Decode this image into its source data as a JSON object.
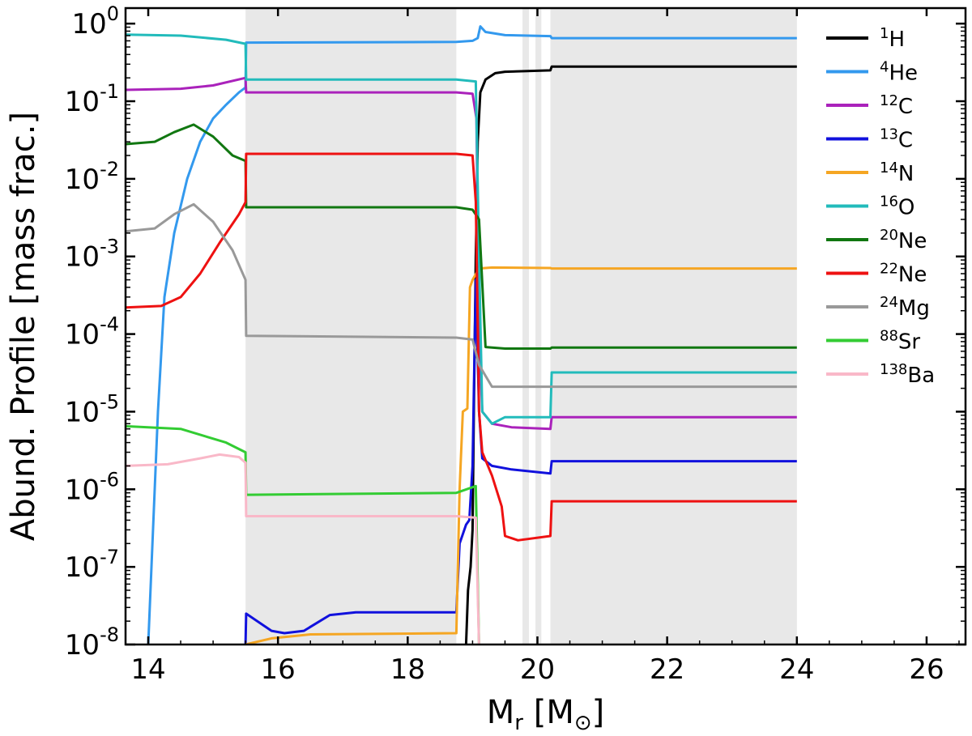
{
  "chart_data": {
    "type": "line",
    "ylabel": "Abund. Profile [mass frac.]",
    "xlabel": {
      "base": "M",
      "sub": "r",
      "unit_base": "M",
      "unit_symbol": "⊙"
    },
    "x_range": [
      13.65,
      26.6
    ],
    "y_range_log10": [
      -8,
      0.2
    ],
    "y_scale": "log",
    "x_ticks": [
      14,
      16,
      18,
      20,
      22,
      24,
      26
    ],
    "y_ticks": [
      {
        "exp": 0,
        "label_base": "10",
        "label_exp": "0"
      },
      {
        "exp": -1,
        "label_base": "10",
        "label_exp": "-1"
      },
      {
        "exp": -2,
        "label_base": "10",
        "label_exp": "-2"
      },
      {
        "exp": -3,
        "label_base": "10",
        "label_exp": "-3"
      },
      {
        "exp": -4,
        "label_base": "10",
        "label_exp": "-4"
      },
      {
        "exp": -5,
        "label_base": "10",
        "label_exp": "-5"
      },
      {
        "exp": -6,
        "label_base": "10",
        "label_exp": "-6"
      },
      {
        "exp": -7,
        "label_base": "10",
        "label_exp": "-7"
      },
      {
        "exp": -8,
        "label_base": "10",
        "label_exp": "-8"
      }
    ],
    "shaded_regions": [
      [
        15.5,
        18.75
      ],
      [
        19.77,
        19.87
      ],
      [
        19.97,
        20.06
      ],
      [
        20.2,
        24.0
      ]
    ],
    "legend_position": "right",
    "series": [
      {
        "name": "H",
        "mass": "1",
        "color": "#000000",
        "points": [
          [
            18.88,
            1e-09
          ],
          [
            18.9,
            1e-08
          ],
          [
            18.93,
            5e-08
          ],
          [
            18.97,
            1e-07
          ],
          [
            19.0,
            3e-07
          ],
          [
            19.02,
            1e-05
          ],
          [
            19.05,
            0.001
          ],
          [
            19.08,
            0.03
          ],
          [
            19.12,
            0.13
          ],
          [
            19.2,
            0.19
          ],
          [
            19.35,
            0.23
          ],
          [
            19.5,
            0.24
          ],
          [
            20.2,
            0.25
          ],
          [
            20.22,
            0.28
          ],
          [
            24.0,
            0.28
          ]
        ]
      },
      {
        "name": "He",
        "mass": "4",
        "color": "#3399ee",
        "points": [
          [
            13.95,
            1e-09
          ],
          [
            14.05,
            1e-07
          ],
          [
            14.15,
            1e-05
          ],
          [
            14.25,
            0.0003
          ],
          [
            14.4,
            0.002
          ],
          [
            14.6,
            0.01
          ],
          [
            14.8,
            0.03
          ],
          [
            15.0,
            0.06
          ],
          [
            15.2,
            0.09
          ],
          [
            15.4,
            0.13
          ],
          [
            15.5,
            0.15
          ],
          [
            15.51,
            0.57
          ],
          [
            18.75,
            0.58
          ],
          [
            19.0,
            0.6
          ],
          [
            19.08,
            0.65
          ],
          [
            19.12,
            0.92
          ],
          [
            19.2,
            0.78
          ],
          [
            19.5,
            0.71
          ],
          [
            20.2,
            0.69
          ],
          [
            20.22,
            0.65
          ],
          [
            24.0,
            0.65
          ]
        ]
      },
      {
        "name": "C",
        "mass": "12",
        "color": "#aa22bb",
        "points": [
          [
            13.65,
            0.14
          ],
          [
            14.5,
            0.145
          ],
          [
            15.0,
            0.16
          ],
          [
            15.5,
            0.2
          ],
          [
            15.51,
            0.13
          ],
          [
            18.75,
            0.13
          ],
          [
            19.0,
            0.125
          ],
          [
            19.06,
            0.06
          ],
          [
            19.1,
            0.0001
          ],
          [
            19.15,
            1e-05
          ],
          [
            19.3,
            7e-06
          ],
          [
            19.6,
            6.3e-06
          ],
          [
            20.2,
            6e-06
          ],
          [
            20.22,
            8.5e-06
          ],
          [
            24.0,
            8.5e-06
          ]
        ]
      },
      {
        "name": "C",
        "mass": "13",
        "color": "#1111dd",
        "points": [
          [
            15.49,
            1e-09
          ],
          [
            15.5,
            1e-08
          ],
          [
            15.51,
            2.5e-08
          ],
          [
            15.9,
            1.5e-08
          ],
          [
            16.1,
            1.4e-08
          ],
          [
            16.4,
            1.5e-08
          ],
          [
            16.8,
            2.4e-08
          ],
          [
            17.2,
            2.6e-08
          ],
          [
            18.5,
            2.6e-08
          ],
          [
            18.75,
            2.6e-08
          ],
          [
            18.8,
            2e-07
          ],
          [
            18.9,
            3.5e-07
          ],
          [
            18.95,
            4e-07
          ],
          [
            19.0,
            2e-06
          ],
          [
            19.05,
            0.0005
          ],
          [
            19.1,
            1e-05
          ],
          [
            19.15,
            2.5e-06
          ],
          [
            19.3,
            2e-06
          ],
          [
            19.6,
            1.8e-06
          ],
          [
            20.2,
            1.6e-06
          ],
          [
            20.22,
            2.3e-06
          ],
          [
            24.0,
            2.3e-06
          ]
        ]
      },
      {
        "name": "N",
        "mass": "14",
        "color": "#f5a623",
        "points": [
          [
            15.49,
            1e-09
          ],
          [
            15.5,
            1e-08
          ],
          [
            15.9,
            1.2e-08
          ],
          [
            16.5,
            1.35e-08
          ],
          [
            18.75,
            1.4e-08
          ],
          [
            18.8,
            1e-06
          ],
          [
            18.85,
            1e-05
          ],
          [
            18.92,
            1.1e-05
          ],
          [
            18.96,
            0.0004
          ],
          [
            19.0,
            0.0005
          ],
          [
            19.1,
            0.0007
          ],
          [
            19.3,
            0.00072
          ],
          [
            20.2,
            0.00071
          ],
          [
            20.22,
            0.0007
          ],
          [
            24.0,
            0.0007
          ]
        ]
      },
      {
        "name": "O",
        "mass": "16",
        "color": "#22bbbb",
        "points": [
          [
            13.65,
            0.72
          ],
          [
            14.5,
            0.7
          ],
          [
            15.2,
            0.62
          ],
          [
            15.5,
            0.55
          ],
          [
            15.51,
            0.19
          ],
          [
            18.75,
            0.19
          ],
          [
            19.05,
            0.18
          ],
          [
            19.1,
            0.001
          ],
          [
            19.15,
            1e-05
          ],
          [
            19.3,
            7e-06
          ],
          [
            19.5,
            8.5e-06
          ],
          [
            20.2,
            8.5e-06
          ],
          [
            20.22,
            3.2e-05
          ],
          [
            24.0,
            3.2e-05
          ]
        ]
      },
      {
        "name": "Ne",
        "mass": "20",
        "color": "#117711",
        "points": [
          [
            13.65,
            0.028
          ],
          [
            14.1,
            0.03
          ],
          [
            14.4,
            0.04
          ],
          [
            14.7,
            0.05
          ],
          [
            15.0,
            0.035
          ],
          [
            15.3,
            0.02
          ],
          [
            15.5,
            0.017
          ],
          [
            15.51,
            0.0043
          ],
          [
            18.75,
            0.0043
          ],
          [
            19.0,
            0.004
          ],
          [
            19.1,
            0.003
          ],
          [
            19.2,
            6.8e-05
          ],
          [
            19.5,
            6.5e-05
          ],
          [
            20.2,
            6.5e-05
          ],
          [
            20.22,
            6.7e-05
          ],
          [
            24.0,
            6.7e-05
          ]
        ]
      },
      {
        "name": "Ne",
        "mass": "22",
        "color": "#ee1111",
        "points": [
          [
            13.65,
            0.00022
          ],
          [
            14.2,
            0.00023
          ],
          [
            14.5,
            0.0003
          ],
          [
            14.8,
            0.0006
          ],
          [
            15.1,
            0.0015
          ],
          [
            15.4,
            0.0035
          ],
          [
            15.5,
            0.005
          ],
          [
            15.51,
            0.021
          ],
          [
            18.75,
            0.021
          ],
          [
            19.0,
            0.02
          ],
          [
            19.05,
            0.005
          ],
          [
            19.1,
            1e-05
          ],
          [
            19.15,
            3e-06
          ],
          [
            19.3,
            1.5e-06
          ],
          [
            19.45,
            6e-07
          ],
          [
            19.5,
            2.5e-07
          ],
          [
            19.7,
            2.2e-07
          ],
          [
            20.2,
            2.5e-07
          ],
          [
            20.22,
            7e-07
          ],
          [
            24.0,
            7e-07
          ]
        ]
      },
      {
        "name": "Mg",
        "mass": "24",
        "color": "#999999",
        "points": [
          [
            13.65,
            0.0021
          ],
          [
            14.1,
            0.0023
          ],
          [
            14.4,
            0.0035
          ],
          [
            14.7,
            0.0047
          ],
          [
            15.0,
            0.0028
          ],
          [
            15.3,
            0.0012
          ],
          [
            15.5,
            0.0005
          ],
          [
            15.51,
            9.5e-05
          ],
          [
            18.75,
            9e-05
          ],
          [
            19.0,
            8.5e-05
          ],
          [
            19.1,
            4e-05
          ],
          [
            19.3,
            2.1e-05
          ],
          [
            20.2,
            2.1e-05
          ],
          [
            24.0,
            2.1e-05
          ]
        ]
      },
      {
        "name": "Sr",
        "mass": "88",
        "color": "#33cc33",
        "points": [
          [
            13.65,
            6.5e-06
          ],
          [
            14.5,
            6e-06
          ],
          [
            15.2,
            4e-06
          ],
          [
            15.5,
            3e-06
          ],
          [
            15.51,
            8.5e-07
          ],
          [
            18.75,
            9e-07
          ],
          [
            19.05,
            1.1e-06
          ],
          [
            19.1,
            1e-08
          ],
          [
            19.12,
            1e-09
          ]
        ]
      },
      {
        "name": "Ba",
        "mass": "138",
        "color": "#f9b8c8",
        "points": [
          [
            13.65,
            2e-06
          ],
          [
            14.3,
            2.1e-06
          ],
          [
            14.8,
            2.5e-06
          ],
          [
            15.1,
            2.8e-06
          ],
          [
            15.4,
            2.6e-06
          ],
          [
            15.5,
            2.2e-06
          ],
          [
            15.51,
            4.5e-07
          ],
          [
            18.75,
            4.5e-07
          ],
          [
            19.05,
            4.3e-07
          ],
          [
            19.1,
            1e-08
          ],
          [
            19.12,
            1e-09
          ]
        ]
      }
    ]
  }
}
